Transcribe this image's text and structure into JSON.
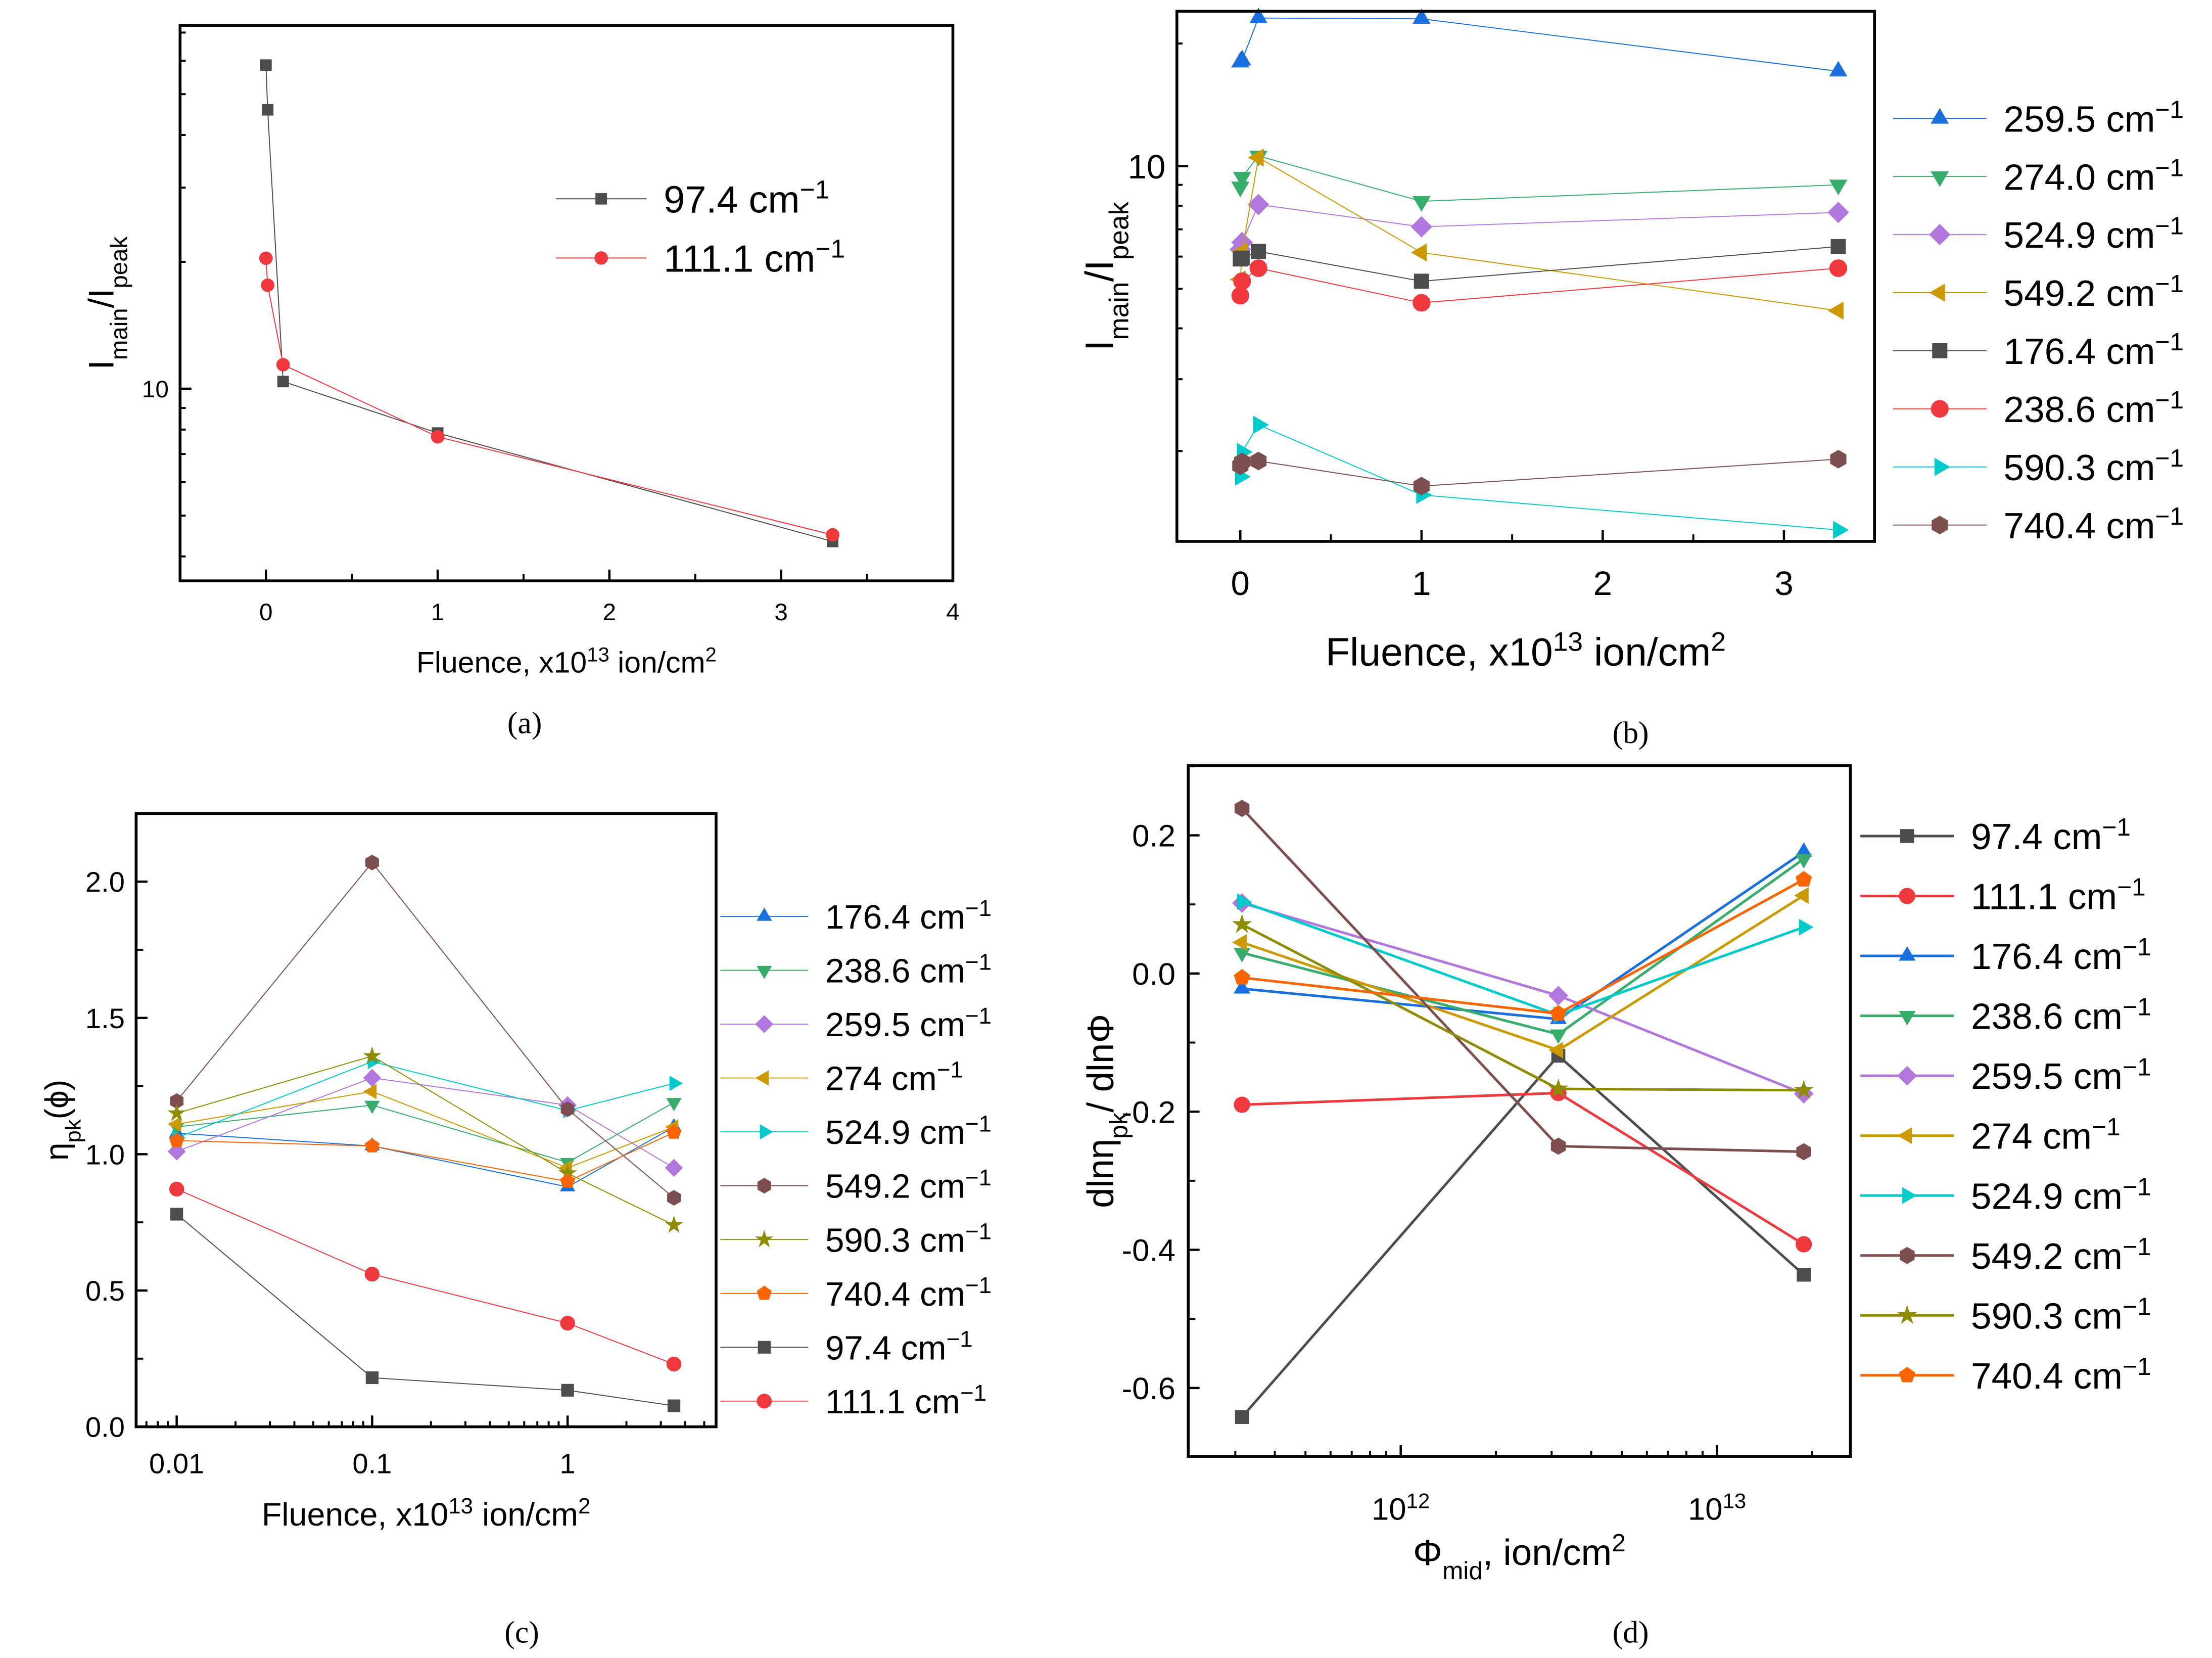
{
  "chart_data": [
    {
      "panel": "a",
      "caption": "(a)",
      "type": "line",
      "xscale": "linear",
      "yscale": "log",
      "xlim": [
        -0.5,
        4
      ],
      "ylim": [
        3.5,
        72.8
      ],
      "xticks": [
        0,
        1,
        2,
        3,
        4
      ],
      "xtick_labels": [
        "0",
        "1",
        "2",
        "3",
        "4"
      ],
      "yticks": [
        10
      ],
      "ytick_labels": [
        "10"
      ],
      "xlabel": [
        [
          "Fluence, x10",
          ""
        ],
        [
          "13",
          "sup"
        ],
        [
          " ion/cm",
          ""
        ],
        [
          "2",
          "sup"
        ]
      ],
      "ylabel": [
        [
          "I",
          ""
        ],
        [
          "main",
          "sub"
        ],
        [
          "/I",
          ""
        ],
        [
          "peak",
          "sub"
        ]
      ],
      "legend_position": "upper-right",
      "series": [
        {
          "name": "97.4 cm",
          "sup": "−1",
          "color": "#4d4d4d",
          "marker": "square",
          "x": [
            0,
            0.01,
            0.1,
            1,
            3.3
          ],
          "y": [
            58.6,
            45.9,
            10.4,
            7.85,
            4.34
          ]
        },
        {
          "name": "111.1 cm",
          "sup": "−1",
          "color": "#f0393f",
          "marker": "circle",
          "x": [
            0,
            0.01,
            0.1,
            1,
            3.3
          ],
          "y": [
            20.4,
            17.6,
            11.4,
            7.69,
            4.5
          ]
        }
      ]
    },
    {
      "panel": "b",
      "caption": "(b)",
      "type": "line",
      "xscale": "linear",
      "yscale": "log",
      "xlim": [
        -0.35,
        3.5
      ],
      "ylim": [
        1.2,
        24
      ],
      "xticks": [
        0,
        1,
        2,
        3
      ],
      "xtick_labels": [
        "0",
        "1",
        "2",
        "3"
      ],
      "yticks": [
        10
      ],
      "ytick_labels": [
        "10"
      ],
      "xlabel": [
        [
          "Fluence, x10",
          ""
        ],
        [
          "13",
          "sup"
        ],
        [
          " ion/cm",
          ""
        ],
        [
          "2",
          "sup"
        ]
      ],
      "ylabel": [
        [
          "I",
          ""
        ],
        [
          "main",
          "sub"
        ],
        [
          "/I",
          ""
        ],
        [
          "peak",
          "sub"
        ]
      ],
      "legend_position": "right-outside",
      "series": [
        {
          "name": "259.5 cm",
          "sup": "−1",
          "color": "#1a6fdf",
          "marker": "triangle-up",
          "x": [
            0,
            0.01,
            0.1,
            1,
            3.3
          ],
          "y": [
            18.0,
            18.2,
            23.1,
            23.0,
            17.1
          ]
        },
        {
          "name": "274.0 cm",
          "sup": "−1",
          "color": "#37ad6b",
          "marker": "triangle-down",
          "x": [
            0,
            0.01,
            0.1,
            1,
            3.3
          ],
          "y": [
            8.9,
            9.4,
            10.6,
            8.2,
            9.0
          ]
        },
        {
          "name": "524.9 cm",
          "sup": "−1",
          "color": "#b177de",
          "marker": "diamond",
          "x": [
            0,
            0.01,
            0.1,
            1,
            3.3
          ],
          "y": [
            6.25,
            6.5,
            8.05,
            7.1,
            7.7
          ]
        },
        {
          "name": "549.2 cm",
          "sup": "−1",
          "color": "#cc9900",
          "marker": "triangle-left",
          "x": [
            0,
            0.01,
            0.1,
            1,
            3.3
          ],
          "y": [
            5.27,
            6.18,
            10.5,
            6.14,
            4.42
          ]
        },
        {
          "name": "176.4 cm",
          "sup": "−1",
          "color": "#4d4d4d",
          "marker": "square",
          "x": [
            0,
            0.01,
            0.1,
            1,
            3.3
          ],
          "y": [
            5.92,
            5.95,
            6.18,
            5.22,
            6.35
          ]
        },
        {
          "name": "238.6 cm",
          "sup": "−1",
          "color": "#f0393f",
          "marker": "circle",
          "x": [
            0,
            0.01,
            0.1,
            1,
            3.3
          ],
          "y": [
            4.81,
            5.22,
            5.62,
            4.62,
            5.62
          ]
        },
        {
          "name": "590.3 cm",
          "sup": "−1",
          "color": "#00cbcc",
          "marker": "triangle-right",
          "x": [
            0,
            0.01,
            0.1,
            1,
            3.3
          ],
          "y": [
            1.73,
            1.99,
            2.32,
            1.56,
            1.28
          ]
        },
        {
          "name": "740.4 cm",
          "sup": "−1",
          "color": "#7d4e4e",
          "marker": "hexagon",
          "x": [
            0,
            0.01,
            0.1,
            1,
            3.3
          ],
          "y": [
            1.84,
            1.88,
            1.89,
            1.64,
            1.91
          ]
        }
      ]
    },
    {
      "panel": "c",
      "caption": "(c)",
      "type": "line",
      "xscale": "log",
      "yscale": "linear",
      "xlim": [
        0.0062,
        5.75
      ],
      "ylim": [
        0,
        2.25
      ],
      "xticks": [
        0.01,
        0.1,
        1
      ],
      "xtick_labels": [
        "0.01",
        "0.1",
        "1"
      ],
      "yticks": [
        0,
        0.5,
        1.0,
        1.5,
        2.0
      ],
      "ytick_labels": [
        "0.0",
        "0.5",
        "1.0",
        "1.5",
        "2.0"
      ],
      "xlabel": [
        [
          "Fluence, x10",
          ""
        ],
        [
          "13",
          "sup"
        ],
        [
          " ion/cm",
          ""
        ],
        [
          "2",
          "sup"
        ]
      ],
      "ylabel": [
        [
          "η",
          ""
        ],
        [
          "pk",
          "sub"
        ],
        [
          "(ϕ)",
          ""
        ]
      ],
      "legend_position": "right-outside",
      "series": [
        {
          "name": "176.4 cm",
          "sup": "−1",
          "color": "#1a6fdf",
          "marker": "triangle-up",
          "x": [
            0.01,
            0.1,
            1,
            3.5
          ],
          "y": [
            1.077,
            1.03,
            0.88,
            1.1
          ]
        },
        {
          "name": "238.6 cm",
          "sup": "−1",
          "color": "#37ad6b",
          "marker": "triangle-down",
          "x": [
            0.01,
            0.1,
            1,
            3.5
          ],
          "y": [
            1.1,
            1.18,
            0.97,
            1.19
          ]
        },
        {
          "name": "259.5 cm",
          "sup": "−1",
          "color": "#b177de",
          "marker": "diamond",
          "x": [
            0.01,
            0.1,
            1,
            3.5
          ],
          "y": [
            1.01,
            1.28,
            1.18,
            0.95
          ]
        },
        {
          "name": "274 cm",
          "sup": "−1",
          "color": "#cc9900",
          "marker": "triangle-left",
          "x": [
            0.01,
            0.1,
            1,
            3.5
          ],
          "y": [
            1.11,
            1.23,
            0.95,
            1.1
          ]
        },
        {
          "name": "524.9 cm",
          "sup": "−1",
          "color": "#00cbcc",
          "marker": "triangle-right",
          "x": [
            0.01,
            0.1,
            1,
            3.5
          ],
          "y": [
            1.06,
            1.34,
            1.16,
            1.26
          ]
        },
        {
          "name": "549.2 cm",
          "sup": "−1",
          "color": "#7d4e4e",
          "marker": "hexagon",
          "x": [
            0.01,
            0.1,
            1,
            3.5
          ],
          "y": [
            1.195,
            2.07,
            1.165,
            0.84
          ]
        },
        {
          "name": "590.3 cm",
          "sup": "−1",
          "color": "#8e8c00",
          "marker": "star",
          "x": [
            0.01,
            0.1,
            1,
            3.5
          ],
          "y": [
            1.15,
            1.36,
            0.93,
            0.74
          ]
        },
        {
          "name": "740.4 cm",
          "sup": "−1",
          "color": "#fb6501",
          "marker": "pentagon",
          "x": [
            0.01,
            0.1,
            1,
            3.5
          ],
          "y": [
            1.05,
            1.03,
            0.9,
            1.08
          ]
        },
        {
          "name": "97.4 cm",
          "sup": "−1",
          "color": "#4d4d4d",
          "marker": "square",
          "x": [
            0.01,
            0.1,
            1,
            3.5
          ],
          "y": [
            0.78,
            0.18,
            0.134,
            0.077
          ]
        },
        {
          "name": "111.1 cm",
          "sup": "−1",
          "color": "#f0393f",
          "marker": "circle",
          "x": [
            0.01,
            0.1,
            1,
            3.5
          ],
          "y": [
            0.872,
            0.56,
            0.38,
            0.23
          ]
        }
      ]
    },
    {
      "panel": "d",
      "caption": "(d)",
      "type": "line",
      "xscale": "log",
      "yscale": "linear",
      "xlim": [
        213000000000.0,
        26400000000000.0
      ],
      "ylim": [
        -0.699,
        0.301
      ],
      "xticks": [
        1000000000000.0,
        10000000000000.0
      ],
      "xtick_labels": [
        [
          "10",
          "12"
        ],
        [
          "10",
          "13"
        ]
      ],
      "yticks": [
        -0.6,
        -0.4,
        -0.2,
        0.0,
        0.2
      ],
      "ytick_labels": [
        "-0.6",
        "-0.4",
        "-0.2",
        "0.0",
        "0.2"
      ],
      "xlabel": [
        [
          "Φ",
          ""
        ],
        [
          "mid",
          "sub"
        ],
        [
          ", ion/cm",
          ""
        ],
        [
          "2",
          "sup"
        ]
      ],
      "ylabel": [
        [
          "dlnη",
          ""
        ],
        [
          "pk",
          "sub"
        ],
        [
          "/ dlnΦ",
          ""
        ]
      ],
      "legend_position": "right-outside",
      "series": [
        {
          "name": "97.4 cm",
          "sup": "−1",
          "color": "#4d4d4d",
          "marker": "square",
          "x": [
            315000000000.0,
            3150000000000.0,
            18800000000000.0
          ],
          "y": [
            -0.642,
            -0.119,
            -0.436
          ]
        },
        {
          "name": "111.1 cm",
          "sup": "−1",
          "color": "#f0393f",
          "marker": "circle",
          "x": [
            315000000000.0,
            3150000000000.0,
            18800000000000.0
          ],
          "y": [
            -0.19,
            -0.173,
            -0.392
          ]
        },
        {
          "name": "176.4 cm",
          "sup": "−1",
          "color": "#1a6fdf",
          "marker": "triangle-up",
          "x": [
            315000000000.0,
            3150000000000.0,
            18800000000000.0
          ],
          "y": [
            -0.022,
            -0.066,
            0.176
          ]
        },
        {
          "name": "238.6 cm",
          "sup": "−1",
          "color": "#37ad6b",
          "marker": "triangle-down",
          "x": [
            315000000000.0,
            3150000000000.0,
            18800000000000.0
          ],
          "y": [
            0.03,
            -0.088,
            0.166
          ]
        },
        {
          "name": "259.5 cm",
          "sup": "−1",
          "color": "#b177de",
          "marker": "diamond",
          "x": [
            315000000000.0,
            3150000000000.0,
            18800000000000.0
          ],
          "y": [
            0.102,
            -0.032,
            -0.174
          ]
        },
        {
          "name": "274 cm",
          "sup": "−1",
          "color": "#cc9900",
          "marker": "triangle-left",
          "x": [
            315000000000.0,
            3150000000000.0,
            18800000000000.0
          ],
          "y": [
            0.045,
            -0.111,
            0.113
          ]
        },
        {
          "name": "524.9 cm",
          "sup": "−1",
          "color": "#00cbcc",
          "marker": "triangle-right",
          "x": [
            315000000000.0,
            3150000000000.0,
            18800000000000.0
          ],
          "y": [
            0.104,
            -0.06,
            0.067
          ]
        },
        {
          "name": "549.2 cm",
          "sup": "−1",
          "color": "#7d4e4e",
          "marker": "hexagon",
          "x": [
            315000000000.0,
            3150000000000.0,
            18800000000000.0
          ],
          "y": [
            0.239,
            -0.25,
            -0.258
          ]
        },
        {
          "name": "590.3 cm",
          "sup": "−1",
          "color": "#8e8c00",
          "marker": "star",
          "x": [
            315000000000.0,
            3150000000000.0,
            18800000000000.0
          ],
          "y": [
            0.071,
            -0.167,
            -0.169
          ]
        },
        {
          "name": "740.4 cm",
          "sup": "−1",
          "color": "#fb6501",
          "marker": "pentagon",
          "x": [
            315000000000.0,
            3150000000000.0,
            18800000000000.0
          ],
          "y": [
            -0.006,
            -0.058,
            0.136
          ]
        }
      ]
    }
  ]
}
